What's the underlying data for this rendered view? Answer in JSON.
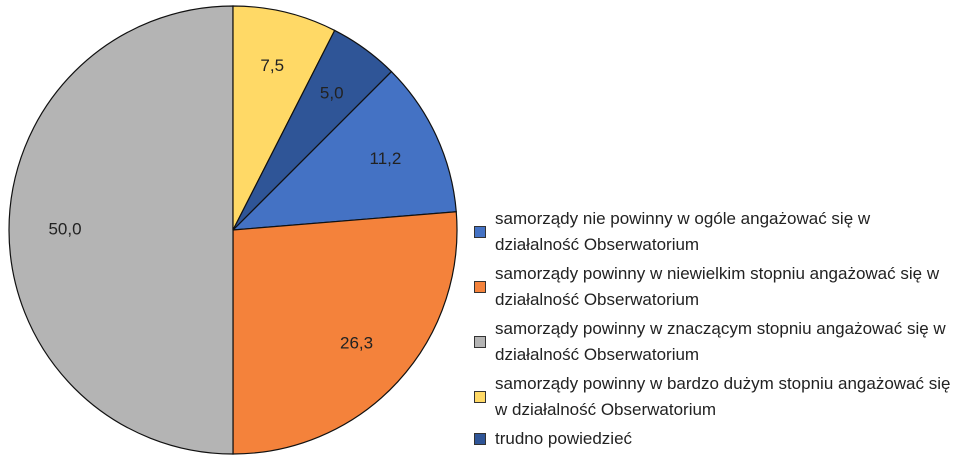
{
  "chart_data": {
    "type": "pie",
    "categories": [
      "samorządy nie powinny w ogóle angażować się w działalność Obserwatorium",
      "samorządy powinny w niewielkim stopniu angażować się w działalność Obserwatorium",
      "samorządy powinny w znaczącym stopniu angażować się w działalność Obserwatorium",
      "samorządy powinny w bardzo dużym stopniu angażować się w działalność Obserwatorium",
      "trudno powiedzieć"
    ],
    "values": [
      11.2,
      26.3,
      50.0,
      7.5,
      5.0
    ],
    "value_labels": [
      "11,2",
      "26,3",
      "50,0",
      "7,5",
      "5,0"
    ],
    "colors": [
      "#4472c4",
      "#f4823b",
      "#b4b4b4",
      "#ffd966",
      "#2f5597"
    ],
    "legend": "right"
  }
}
